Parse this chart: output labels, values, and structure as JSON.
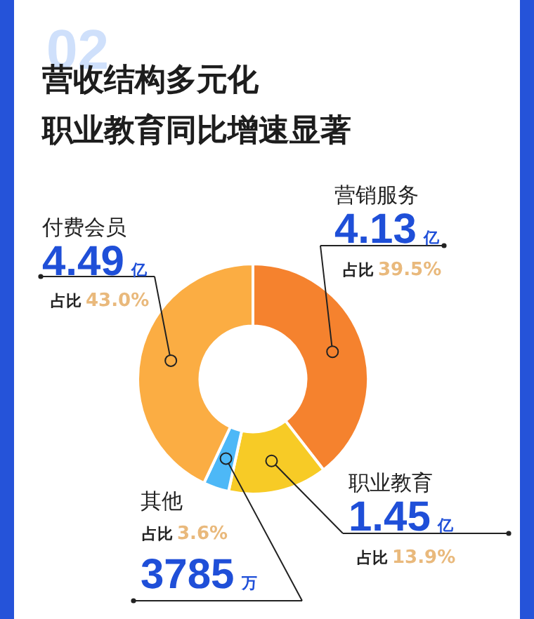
{
  "chart_data": {
    "type": "donut",
    "title": "营收结构多元化",
    "subtitle": "职业教育同比增速显著",
    "categories": [
      "营销服务",
      "职业教育",
      "其他",
      "付费会员"
    ],
    "values": [
      39.5,
      13.9,
      3.6,
      43.0
    ],
    "colors": [
      "#f5822e",
      "#f7cb26",
      "#4db8f7",
      "#fbad43"
    ],
    "value_labels": [
      "占比 39.5%",
      "占比 13.9%",
      "占比 3.6%",
      "占比 43.0%"
    ],
    "annotations": [
      "02",
      {
        "text": "4.13 亿",
        "x": "营销服务"
      },
      {
        "text": "1.45 亿",
        "x": "职业教育"
      },
      {
        "text": "3785 万",
        "x": "其他"
      },
      {
        "text": "4.49 亿",
        "x": "付费会员"
      }
    ],
    "legend": false
  }
}
